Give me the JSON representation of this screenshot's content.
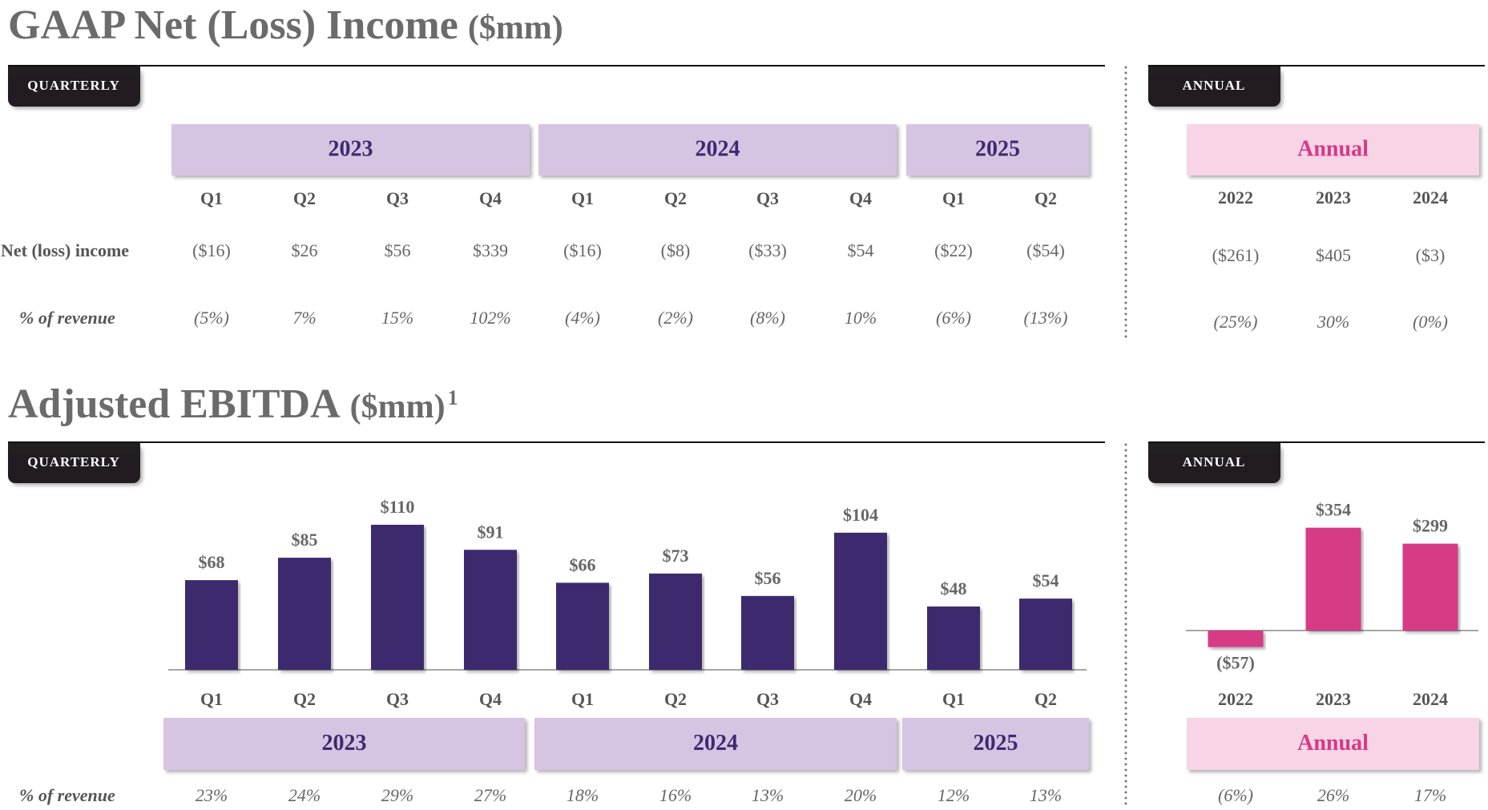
{
  "net_income": {
    "title": "GAAP Net (Loss) Income",
    "unit": "($mm)",
    "quarterly": {
      "tab": "QUARTERLY",
      "years": [
        "2023",
        "2024",
        "2025"
      ],
      "quarters": [
        "Q1",
        "Q2",
        "Q3",
        "Q4",
        "Q1",
        "Q2",
        "Q3",
        "Q4",
        "Q1",
        "Q2"
      ],
      "rows": [
        {
          "label": "Net (loss) income",
          "cells": [
            "($16)",
            "$26",
            "$56",
            "$339",
            "($16)",
            "($8)",
            "($33)",
            "$54",
            "($22)",
            "($54)"
          ]
        },
        {
          "label": "% of revenue",
          "cells": [
            "(5%)",
            "7%",
            "15%",
            "102%",
            "(4%)",
            "(2%)",
            "(8%)",
            "10%",
            "(6%)",
            "(13%)"
          ]
        }
      ]
    },
    "annual": {
      "tab": "ANNUAL",
      "heading": "Annual",
      "years": [
        "2022",
        "2023",
        "2024"
      ],
      "rows": [
        {
          "cells": [
            "($261)",
            "$405",
            "($3)"
          ]
        },
        {
          "cells": [
            "(25%)",
            "30%",
            "(0%)"
          ]
        }
      ]
    }
  },
  "ebitda": {
    "title": "Adjusted EBITDA",
    "unit": "($mm)",
    "footnote": "1",
    "quarterly_tab": "QUARTERLY",
    "annual_tab": "ANNUAL",
    "years": [
      "2023",
      "2024",
      "2025"
    ],
    "annual_heading": "Annual",
    "pct_label": "% of revenue"
  },
  "chart_data": [
    {
      "type": "bar",
      "color": "#3d2a6e",
      "categories": [
        "Q1",
        "Q2",
        "Q3",
        "Q4",
        "Q1",
        "Q2",
        "Q3",
        "Q4",
        "Q1",
        "Q2"
      ],
      "values": [
        68,
        85,
        110,
        91,
        66,
        73,
        56,
        104,
        48,
        54
      ],
      "value_labels": [
        "$68",
        "$85",
        "$110",
        "$91",
        "$66",
        "$73",
        "$56",
        "$104",
        "$48",
        "$54"
      ],
      "pct_of_revenue": [
        "23%",
        "24%",
        "29%",
        "27%",
        "18%",
        "16%",
        "13%",
        "20%",
        "12%",
        "13%"
      ]
    },
    {
      "type": "bar",
      "color": "#d63a86",
      "categories": [
        "2022",
        "2023",
        "2024"
      ],
      "values": [
        -57,
        354,
        299
      ],
      "value_labels": [
        "($57)",
        "$354",
        "$299"
      ],
      "pct_of_revenue": [
        "(6%)",
        "26%",
        "17%"
      ]
    }
  ]
}
